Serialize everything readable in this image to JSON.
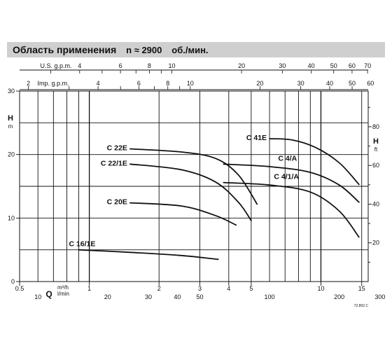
{
  "header": {
    "title": "Область применения",
    "speed_label": "n ≈ 2900",
    "speed_unit": "об./мин."
  },
  "footer": {
    "code": "72.892.C"
  },
  "chart_data": {
    "type": "line",
    "xscale": "log",
    "axes": {
      "q_m3h": {
        "label": "m³/h",
        "ticks": [
          0.5,
          1,
          2,
          3,
          4,
          5,
          10,
          15
        ],
        "tick_labels": [
          "0.5",
          "1",
          "2",
          "3",
          "4",
          "5",
          "10",
          "15"
        ],
        "range": [
          0.5,
          16
        ]
      },
      "q_lmin": {
        "label": "l/min",
        "ticks": [
          10,
          20,
          30,
          40,
          50,
          100,
          200,
          300
        ],
        "tick_labels": [
          "10",
          "20",
          "30",
          "40",
          "50",
          "100",
          "200",
          "300"
        ]
      },
      "q_symbol": "Q",
      "us_gpm": {
        "label": "U.S. g.p.m.",
        "ticks": [
          4,
          6,
          8,
          10,
          20,
          30,
          40,
          50,
          60,
          70
        ],
        "tick_labels": [
          "4",
          "6",
          "8",
          "10",
          "20",
          "30",
          "40",
          "50",
          "60",
          "70"
        ]
      },
      "imp_gpm": {
        "label": "Imp. g.p.m.",
        "ticks": [
          2,
          4,
          6,
          8,
          10,
          20,
          30,
          40,
          50,
          60
        ],
        "tick_labels": [
          "2",
          "4",
          "6",
          "8",
          "10",
          "20",
          "30",
          "40",
          "50",
          "60"
        ]
      },
      "h_m": {
        "label": "H",
        "unit": "m",
        "ticks": [
          0,
          10,
          20,
          30
        ],
        "tick_labels": [
          "0",
          "10",
          "20",
          "30"
        ],
        "range": [
          0,
          30
        ]
      },
      "h_ft": {
        "label": "H",
        "unit": "ft",
        "ticks": [
          20,
          40,
          60,
          80
        ],
        "tick_labels": [
          "20",
          "40",
          "60",
          "80"
        ]
      }
    },
    "grid": true,
    "series": [
      {
        "name": "C 16/1E",
        "x": [
          0.9,
          1.5,
          2.5,
          3.6
        ],
        "y": [
          5.0,
          4.6,
          4.1,
          3.5
        ]
      },
      {
        "name": "C 20E",
        "x": [
          1.5,
          2.5,
          3.5,
          4.3
        ],
        "y": [
          12.4,
          11.9,
          10.4,
          8.9
        ]
      },
      {
        "name": "C 22/1E",
        "x": [
          1.5,
          2.5,
          3.5,
          4.4,
          5.0
        ],
        "y": [
          18.5,
          17.6,
          15.7,
          12.5,
          9.6
        ]
      },
      {
        "name": "C 22E",
        "x": [
          1.5,
          2.5,
          3.5,
          4.4,
          5.3
        ],
        "y": [
          20.9,
          20.4,
          19.4,
          16.8,
          12.2
        ]
      },
      {
        "name": "C 4/A",
        "x": [
          3.8,
          6,
          9,
          12,
          14.6
        ],
        "y": [
          18.5,
          18.1,
          17.2,
          15.2,
          12.5
        ]
      },
      {
        "name": "C 4/1/A",
        "x": [
          3.8,
          6,
          9,
          12,
          14.6
        ],
        "y": [
          15.6,
          15.2,
          14.1,
          11.1,
          7.0
        ]
      },
      {
        "name": "C 41E",
        "x": [
          6,
          7.5,
          9.5,
          12,
          14.6
        ],
        "y": [
          22.5,
          22.3,
          21.1,
          18.7,
          15.3
        ]
      }
    ]
  }
}
